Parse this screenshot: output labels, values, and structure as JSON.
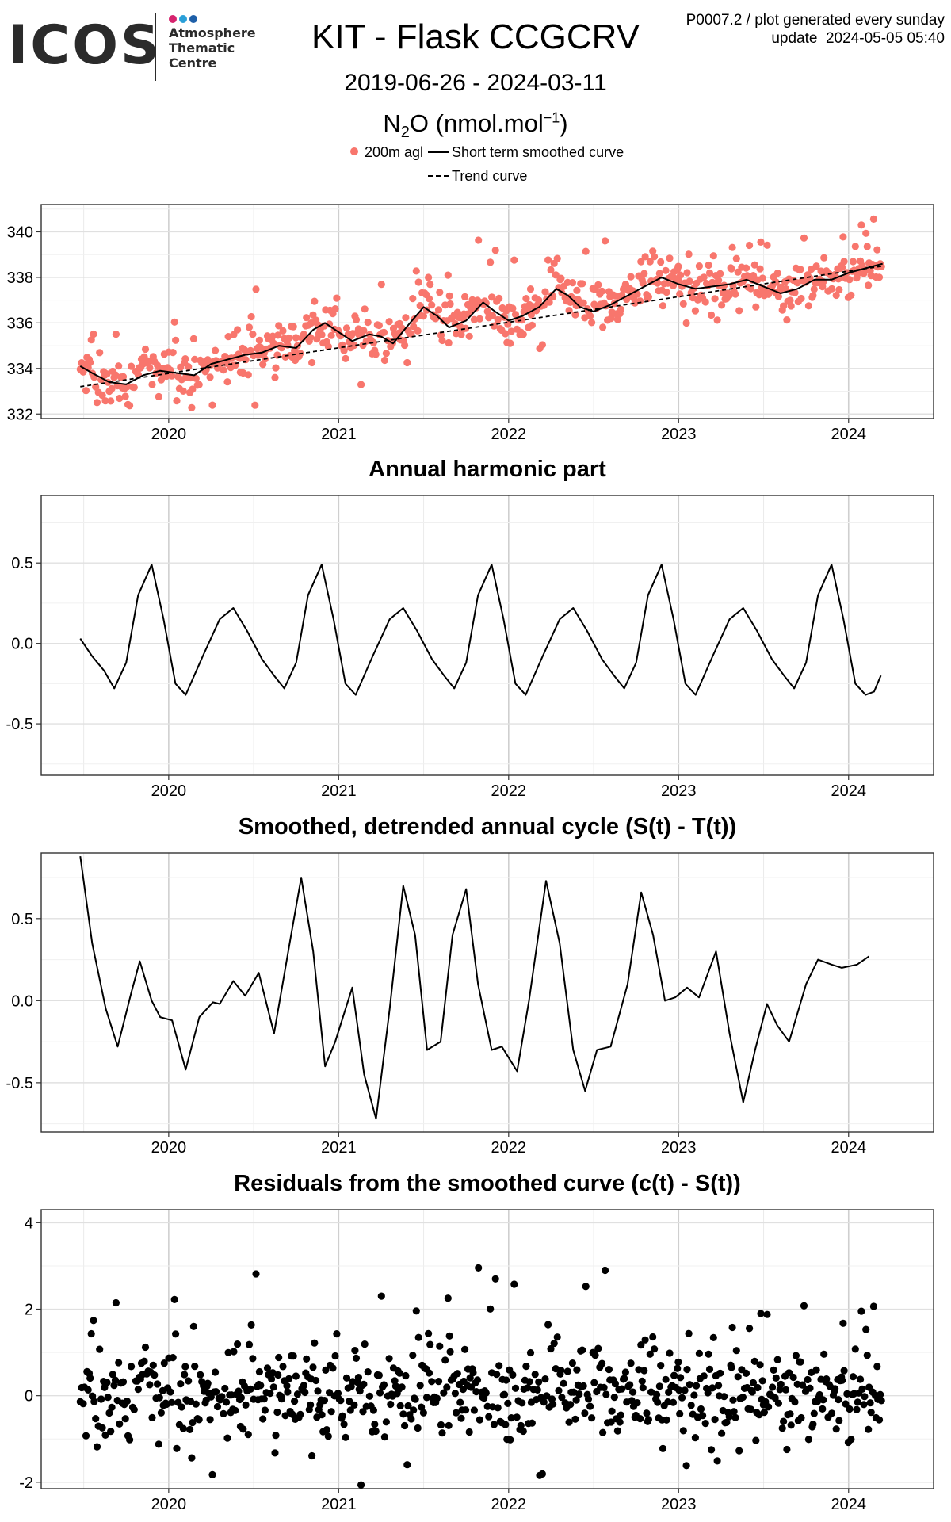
{
  "logo": {
    "word": "ICOS",
    "subtitle_lines": [
      "Atmosphere",
      "Thematic",
      "Centre"
    ],
    "dot_colors": [
      "#d6246e",
      "#2a9fd8",
      "#1e5fa8"
    ]
  },
  "header": {
    "plot_id": "P0007.2 / plot generated every sunday",
    "update": "update  2024-05-05 05:40",
    "title": "KIT - Flask CCGCRV",
    "date_range": "2019-06-26 - 2024-03-11",
    "species_main": "N",
    "species_sub": "2",
    "species_rest": "O (nmol.mol",
    "species_sup": "−1",
    "species_close": ")"
  },
  "legend": {
    "points": "200m agl",
    "smooth": "Short term smoothed curve",
    "trend": "Trend curve"
  },
  "colors": {
    "points": "#f8766d",
    "line": "#000000",
    "residual_points": "#000000"
  },
  "chart_data": [
    {
      "type": "scatter",
      "title": "",
      "ylim": [
        331.8,
        341.2
      ],
      "xlim": [
        2019.25,
        2024.5
      ],
      "yticks": [
        "332",
        "334",
        "336",
        "338",
        "340"
      ],
      "xticks": [
        "2020",
        "2021",
        "2022",
        "2023",
        "2024"
      ],
      "grid": true,
      "trend": {
        "start": [
          2019.48,
          333.2
        ],
        "end": [
          2024.2,
          338.5
        ]
      },
      "smooth": [
        [
          2019.48,
          334.1
        ],
        [
          2019.55,
          333.8
        ],
        [
          2019.65,
          333.4
        ],
        [
          2019.75,
          333.3
        ],
        [
          2019.85,
          333.7
        ],
        [
          2019.95,
          333.9
        ],
        [
          2020.05,
          333.8
        ],
        [
          2020.15,
          333.7
        ],
        [
          2020.25,
          334.2
        ],
        [
          2020.35,
          334.4
        ],
        [
          2020.45,
          334.6
        ],
        [
          2020.55,
          334.7
        ],
        [
          2020.65,
          335.0
        ],
        [
          2020.75,
          334.9
        ],
        [
          2020.85,
          335.7
        ],
        [
          2020.92,
          336.0
        ],
        [
          2021.0,
          335.6
        ],
        [
          2021.08,
          335.2
        ],
        [
          2021.18,
          335.5
        ],
        [
          2021.25,
          335.4
        ],
        [
          2021.32,
          335.1
        ],
        [
          2021.42,
          336.0
        ],
        [
          2021.5,
          336.7
        ],
        [
          2021.58,
          336.3
        ],
        [
          2021.65,
          335.8
        ],
        [
          2021.75,
          336.1
        ],
        [
          2021.85,
          336.9
        ],
        [
          2021.92,
          336.5
        ],
        [
          2022.0,
          336.1
        ],
        [
          2022.08,
          336.3
        ],
        [
          2022.18,
          336.7
        ],
        [
          2022.28,
          337.5
        ],
        [
          2022.35,
          337.2
        ],
        [
          2022.42,
          336.7
        ],
        [
          2022.5,
          336.5
        ],
        [
          2022.6,
          336.8
        ],
        [
          2022.7,
          337.2
        ],
        [
          2022.8,
          337.6
        ],
        [
          2022.9,
          338.0
        ],
        [
          2023.0,
          337.7
        ],
        [
          2023.1,
          337.5
        ],
        [
          2023.2,
          337.6
        ],
        [
          2023.3,
          337.7
        ],
        [
          2023.4,
          337.9
        ],
        [
          2023.5,
          337.6
        ],
        [
          2023.6,
          337.3
        ],
        [
          2023.7,
          337.5
        ],
        [
          2023.8,
          337.9
        ],
        [
          2023.9,
          337.9
        ],
        [
          2024.0,
          338.2
        ],
        [
          2024.1,
          338.4
        ],
        [
          2024.2,
          338.6
        ]
      ],
      "points_source": "200m agl flask samples (approx. 800 points)"
    },
    {
      "type": "line",
      "title": "Annual harmonic part",
      "ylim": [
        -0.82,
        0.92
      ],
      "xlim": [
        2019.25,
        2024.5
      ],
      "yticks": [
        "-0.5",
        "0.0",
        "0.5"
      ],
      "xticks": [
        "2020",
        "2021",
        "2022",
        "2023",
        "2024"
      ],
      "grid": true,
      "values": [
        [
          2019.48,
          0.03
        ],
        [
          2019.55,
          -0.08
        ],
        [
          2019.62,
          -0.17
        ],
        [
          2019.68,
          -0.28
        ],
        [
          2019.75,
          -0.12
        ],
        [
          2019.82,
          0.3
        ],
        [
          2019.9,
          0.49
        ],
        [
          2019.97,
          0.15
        ],
        [
          2020.04,
          -0.25
        ],
        [
          2020.1,
          -0.32
        ],
        [
          2020.2,
          -0.08
        ],
        [
          2020.3,
          0.15
        ],
        [
          2020.38,
          0.22
        ],
        [
          2020.46,
          0.08
        ],
        [
          2020.55,
          -0.1
        ],
        [
          2020.62,
          -0.2
        ],
        [
          2020.68,
          -0.28
        ],
        [
          2020.75,
          -0.12
        ],
        [
          2020.82,
          0.3
        ],
        [
          2020.9,
          0.49
        ],
        [
          2020.97,
          0.15
        ],
        [
          2021.04,
          -0.25
        ],
        [
          2021.1,
          -0.32
        ],
        [
          2021.2,
          -0.08
        ],
        [
          2021.3,
          0.15
        ],
        [
          2021.38,
          0.22
        ],
        [
          2021.46,
          0.08
        ],
        [
          2021.55,
          -0.1
        ],
        [
          2021.62,
          -0.2
        ],
        [
          2021.68,
          -0.28
        ],
        [
          2021.75,
          -0.12
        ],
        [
          2021.82,
          0.3
        ],
        [
          2021.9,
          0.49
        ],
        [
          2021.97,
          0.15
        ],
        [
          2022.04,
          -0.25
        ],
        [
          2022.1,
          -0.32
        ],
        [
          2022.2,
          -0.08
        ],
        [
          2022.3,
          0.15
        ],
        [
          2022.38,
          0.22
        ],
        [
          2022.46,
          0.08
        ],
        [
          2022.55,
          -0.1
        ],
        [
          2022.62,
          -0.2
        ],
        [
          2022.68,
          -0.28
        ],
        [
          2022.75,
          -0.12
        ],
        [
          2022.82,
          0.3
        ],
        [
          2022.9,
          0.49
        ],
        [
          2022.97,
          0.15
        ],
        [
          2023.04,
          -0.25
        ],
        [
          2023.1,
          -0.32
        ],
        [
          2023.2,
          -0.08
        ],
        [
          2023.3,
          0.15
        ],
        [
          2023.38,
          0.22
        ],
        [
          2023.46,
          0.08
        ],
        [
          2023.55,
          -0.1
        ],
        [
          2023.62,
          -0.2
        ],
        [
          2023.68,
          -0.28
        ],
        [
          2023.75,
          -0.12
        ],
        [
          2023.82,
          0.3
        ],
        [
          2023.9,
          0.49
        ],
        [
          2023.97,
          0.15
        ],
        [
          2024.04,
          -0.25
        ],
        [
          2024.1,
          -0.32
        ],
        [
          2024.15,
          -0.3
        ],
        [
          2024.19,
          -0.2
        ]
      ]
    },
    {
      "type": "line",
      "title": "Smoothed, detrended annual cycle (S(t) - T(t))",
      "ylim": [
        -0.8,
        0.9
      ],
      "xlim": [
        2019.25,
        2024.5
      ],
      "yticks": [
        "-0.5",
        "0.0",
        "0.5"
      ],
      "xticks": [
        "2020",
        "2021",
        "2022",
        "2023",
        "2024"
      ],
      "grid": true,
      "values": [
        [
          2019.48,
          0.88
        ],
        [
          2019.55,
          0.35
        ],
        [
          2019.63,
          -0.05
        ],
        [
          2019.7,
          -0.28
        ],
        [
          2019.78,
          0.05
        ],
        [
          2019.83,
          0.24
        ],
        [
          2019.9,
          0.0
        ],
        [
          2019.95,
          -0.1
        ],
        [
          2020.02,
          -0.12
        ],
        [
          2020.1,
          -0.42
        ],
        [
          2020.18,
          -0.1
        ],
        [
          2020.26,
          -0.01
        ],
        [
          2020.3,
          -0.02
        ],
        [
          2020.38,
          0.12
        ],
        [
          2020.45,
          0.03
        ],
        [
          2020.53,
          0.17
        ],
        [
          2020.62,
          -0.2
        ],
        [
          2020.72,
          0.4
        ],
        [
          2020.78,
          0.75
        ],
        [
          2020.85,
          0.3
        ],
        [
          2020.92,
          -0.4
        ],
        [
          2020.98,
          -0.25
        ],
        [
          2021.08,
          0.08
        ],
        [
          2021.15,
          -0.45
        ],
        [
          2021.22,
          -0.72
        ],
        [
          2021.3,
          -0.05
        ],
        [
          2021.38,
          0.7
        ],
        [
          2021.45,
          0.4
        ],
        [
          2021.52,
          -0.3
        ],
        [
          2021.6,
          -0.25
        ],
        [
          2021.67,
          0.4
        ],
        [
          2021.75,
          0.68
        ],
        [
          2021.82,
          0.1
        ],
        [
          2021.9,
          -0.3
        ],
        [
          2021.96,
          -0.28
        ],
        [
          2022.05,
          -0.43
        ],
        [
          2022.12,
          0.0
        ],
        [
          2022.22,
          0.73
        ],
        [
          2022.3,
          0.35
        ],
        [
          2022.38,
          -0.3
        ],
        [
          2022.45,
          -0.55
        ],
        [
          2022.52,
          -0.3
        ],
        [
          2022.6,
          -0.28
        ],
        [
          2022.7,
          0.1
        ],
        [
          2022.78,
          0.66
        ],
        [
          2022.85,
          0.4
        ],
        [
          2022.92,
          0.0
        ],
        [
          2022.98,
          0.02
        ],
        [
          2023.05,
          0.08
        ],
        [
          2023.12,
          0.02
        ],
        [
          2023.22,
          0.3
        ],
        [
          2023.3,
          -0.2
        ],
        [
          2023.38,
          -0.62
        ],
        [
          2023.45,
          -0.3
        ],
        [
          2023.52,
          -0.02
        ],
        [
          2023.58,
          -0.15
        ],
        [
          2023.65,
          -0.25
        ],
        [
          2023.75,
          0.1
        ],
        [
          2023.82,
          0.25
        ],
        [
          2023.9,
          0.22
        ],
        [
          2023.96,
          0.2
        ],
        [
          2024.05,
          0.22
        ],
        [
          2024.12,
          0.27
        ]
      ]
    },
    {
      "type": "scatter",
      "title": "Residuals from the smoothed curve (c(t) - S(t))",
      "ylim": [
        -2.15,
        4.3
      ],
      "xlim": [
        2019.25,
        2024.5
      ],
      "yticks": [
        "-2",
        "0",
        "2",
        "4"
      ],
      "xticks": [
        "2020",
        "2021",
        "2022",
        "2023",
        "2024"
      ],
      "grid": true,
      "points_source": "residuals of 200m agl flask samples (approx. 800 points)"
    }
  ]
}
